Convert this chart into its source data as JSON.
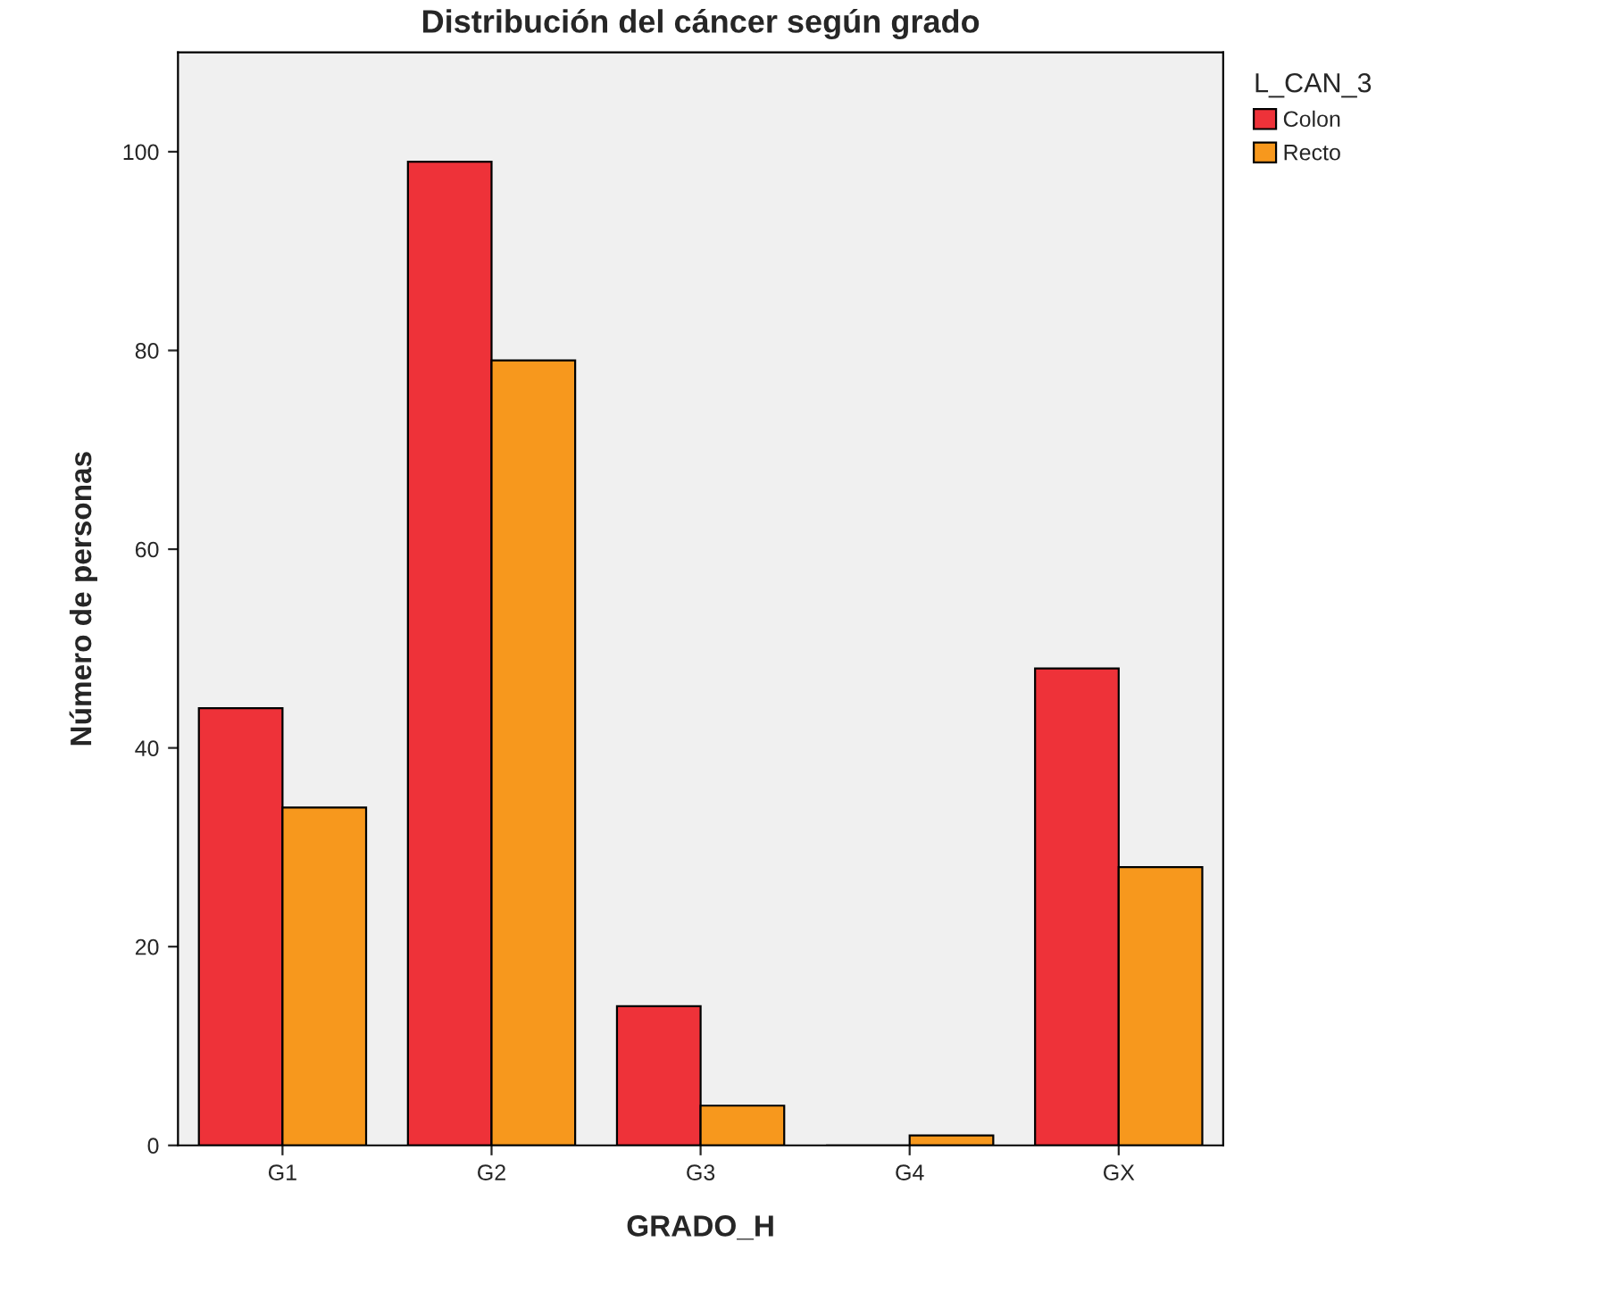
{
  "chart_data": {
    "type": "bar",
    "title": "Distribución del cáncer según grado",
    "xlabel": "GRADO_H",
    "ylabel": "Número de personas",
    "legend_title": "L_CAN_3",
    "categories": [
      "G1",
      "G2",
      "G3",
      "G4",
      "GX"
    ],
    "series": [
      {
        "name": "Colon",
        "color": "#ee3239",
        "values": [
          44,
          99,
          14,
          0,
          48
        ]
      },
      {
        "name": "Recto",
        "color": "#f7981d",
        "values": [
          34,
          79,
          4,
          1,
          28
        ]
      }
    ],
    "ylim": [
      0,
      110
    ],
    "yticks": [
      0,
      20,
      40,
      60,
      80,
      100
    ],
    "grid": false,
    "legend": "top right"
  }
}
